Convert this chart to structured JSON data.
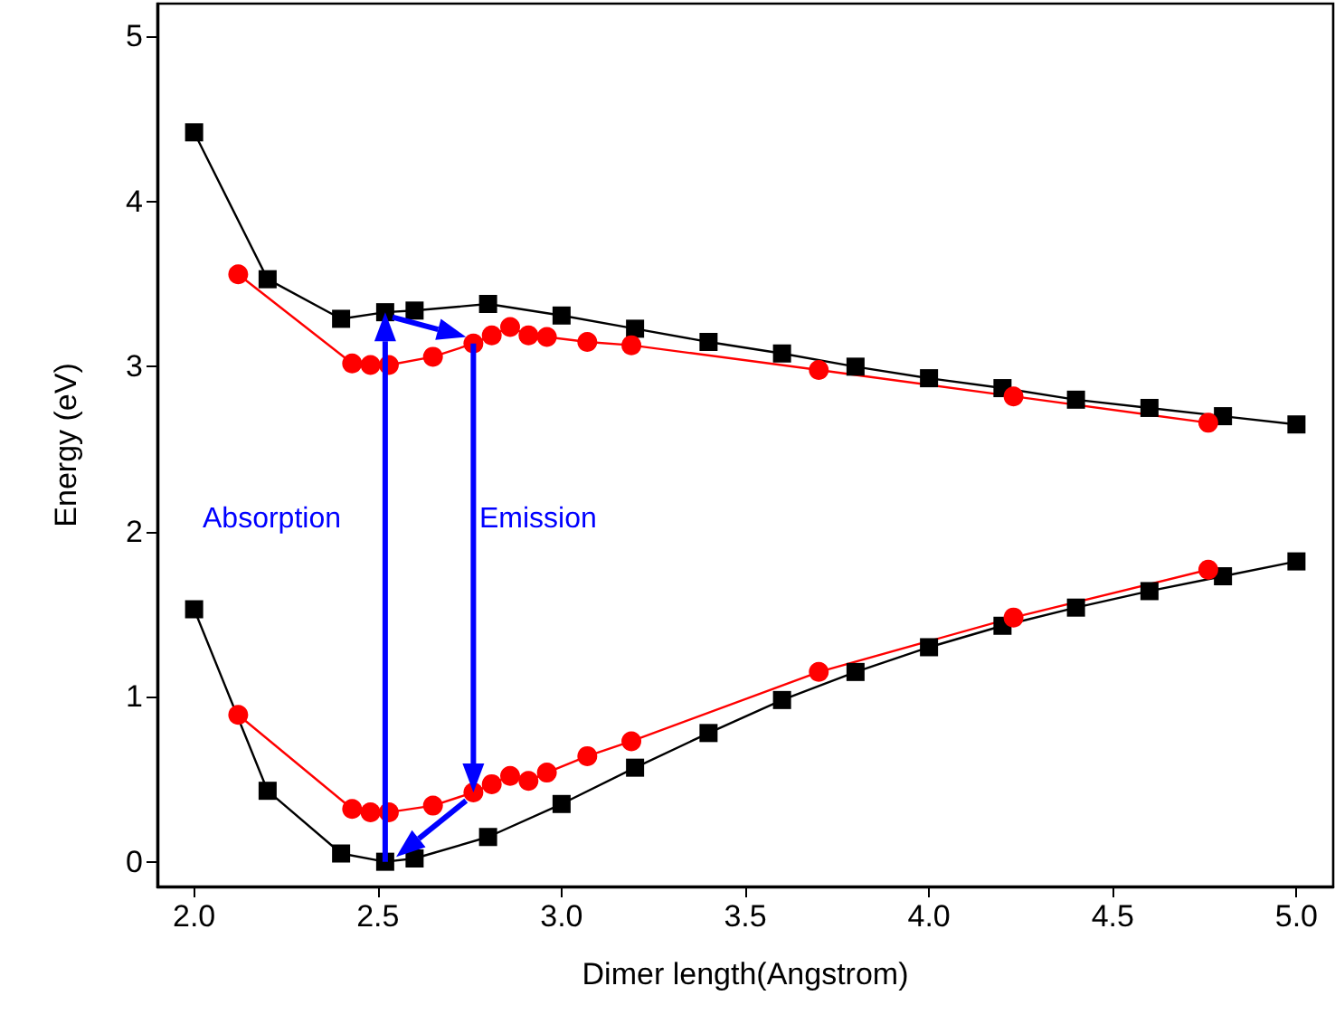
{
  "chart_data": {
    "type": "line",
    "xlabel": "Dimer length(Angstrom)",
    "ylabel": "Energy (eV)",
    "xlim": [
      1.9,
      5.1
    ],
    "ylim": [
      -0.15,
      5.2
    ],
    "xticks": [
      {
        "value": 2,
        "label": "2.0"
      },
      2.5,
      {
        "value": 3,
        "label": "3.0"
      },
      3.5,
      {
        "value": 4,
        "label": "4.0"
      },
      4.5,
      {
        "value": 5,
        "label": "5.0"
      }
    ],
    "yticks": [
      0,
      1,
      2,
      3,
      4,
      5
    ],
    "grid": false,
    "line_style": "solid",
    "annotations": [
      "Absorption",
      "Emission"
    ],
    "series": [
      {
        "color": "#000000",
        "marker": "square",
        "x": [
          2.0,
          2.2,
          2.4,
          2.52,
          2.6,
          2.8,
          3.0,
          3.2,
          3.4,
          3.6,
          3.8,
          4.0,
          4.2,
          4.4,
          4.6,
          4.8,
          5.0
        ],
        "values": [
          4.42,
          3.53,
          3.29,
          3.33,
          3.34,
          3.38,
          3.31,
          3.23,
          3.15,
          3.08,
          3.0,
          2.93,
          2.87,
          2.8,
          2.75,
          2.7,
          2.65
        ]
      },
      {
        "color": "#ff0000",
        "marker": "circle",
        "x": [
          2.12,
          2.43,
          2.48,
          2.53,
          2.65,
          2.76,
          2.81,
          2.86,
          2.91,
          2.96,
          3.07,
          3.19,
          3.7,
          4.23,
          4.76
        ],
        "values": [
          3.56,
          3.02,
          3.01,
          3.01,
          3.06,
          3.14,
          3.19,
          3.24,
          3.19,
          3.18,
          3.15,
          3.13,
          2.98,
          2.82,
          2.66
        ]
      },
      {
        "color": "#000000",
        "marker": "square",
        "x": [
          2.0,
          2.2,
          2.4,
          2.52,
          2.6,
          2.8,
          3.0,
          3.2,
          3.4,
          3.6,
          3.8,
          4.0,
          4.2,
          4.4,
          4.6,
          4.8,
          5.0
        ],
        "values": [
          1.53,
          0.43,
          0.05,
          0.0,
          0.02,
          0.15,
          0.35,
          0.57,
          0.78,
          0.98,
          1.15,
          1.3,
          1.43,
          1.54,
          1.64,
          1.73,
          1.82
        ]
      },
      {
        "color": "#ff0000",
        "marker": "circle",
        "x": [
          2.12,
          2.43,
          2.48,
          2.53,
          2.65,
          2.76,
          2.81,
          2.86,
          2.91,
          2.96,
          3.07,
          3.19,
          3.7,
          4.23,
          4.76
        ],
        "values": [
          0.89,
          0.32,
          0.3,
          0.3,
          0.34,
          0.42,
          0.47,
          0.52,
          0.49,
          0.54,
          0.64,
          0.73,
          1.15,
          1.48,
          1.77
        ]
      }
    ]
  }
}
